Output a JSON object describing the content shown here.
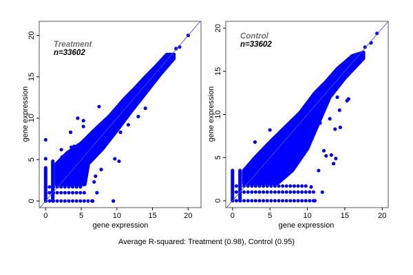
{
  "caption": "Average R-squared: Treatment (0.98), Control (0.95)",
  "colors": {
    "points": "#0000ff",
    "reference_line": "#4a4aff",
    "title": "#707070",
    "axes": "#555555"
  },
  "chart_data": [
    {
      "type": "scatter",
      "title": "Treatment",
      "subtitle": "n=33602",
      "xlabel": "gene expression",
      "ylabel": "gene expression",
      "xlim": [
        -0.9,
        21.8
      ],
      "ylim": [
        -0.8,
        21.7
      ],
      "xticks": [
        0,
        5,
        10,
        15,
        20
      ],
      "yticks": [
        0,
        5,
        10,
        15,
        20
      ],
      "reference_line": "y = x",
      "grid": false,
      "dense_region": [
        [
          1.5,
          4.5
        ],
        [
          3,
          5.8
        ],
        [
          5,
          7
        ],
        [
          7,
          8.7
        ],
        [
          9,
          10.3
        ],
        [
          11,
          12.3
        ],
        [
          12.5,
          13.6
        ],
        [
          14,
          15
        ],
        [
          15.5,
          16.3
        ],
        [
          17,
          17.7
        ],
        [
          18,
          17.7
        ],
        [
          18,
          17.2
        ],
        [
          16,
          15.2
        ],
        [
          14,
          13
        ],
        [
          12,
          10.8
        ],
        [
          10,
          8.5
        ],
        [
          8,
          6.3
        ],
        [
          6,
          4.5
        ],
        [
          5.5,
          2
        ],
        [
          1.5,
          2
        ]
      ],
      "horizontal_bands": [
        {
          "y": 0,
          "x_from": 0,
          "x_to": 6.5
        },
        {
          "y": 1,
          "x_from": 0,
          "x_to": 5.5
        },
        {
          "y": 1.7,
          "x_from": 0,
          "x_to": 5
        }
      ],
      "vertical_bands": [
        {
          "x": 0,
          "y_from": 0,
          "y_to": 4
        },
        {
          "x": 1,
          "y_from": 0,
          "y_to": 4.8
        }
      ],
      "points": [
        [
          0,
          7.4
        ],
        [
          0,
          5.1
        ],
        [
          7.5,
          11.4
        ],
        [
          4.5,
          10
        ],
        [
          5.3,
          9.7
        ],
        [
          5.3,
          9
        ],
        [
          3.5,
          8.3
        ],
        [
          2.2,
          6.2
        ],
        [
          3.6,
          6.5
        ],
        [
          4,
          6.6
        ],
        [
          9.5,
          0
        ],
        [
          10.3,
          4.8
        ],
        [
          9.7,
          5.1
        ],
        [
          7.8,
          3.8
        ],
        [
          7,
          3
        ],
        [
          6.8,
          2.3
        ],
        [
          20,
          20
        ],
        [
          18.8,
          18.6
        ],
        [
          18.3,
          18.4
        ],
        [
          12.6,
          12.5
        ],
        [
          14,
          11.2
        ],
        [
          13,
          10.2
        ],
        [
          11.6,
          9.2
        ],
        [
          10.5,
          8.3
        ],
        [
          7.2,
          1
        ],
        [
          6.6,
          0
        ],
        [
          2.3,
          5.3
        ]
      ]
    },
    {
      "type": "scatter",
      "title": "Control",
      "subtitle": "n=33602",
      "xlabel": "gene expression",
      "ylabel": "gene expression",
      "xlim": [
        -0.9,
        20.8
      ],
      "ylim": [
        -0.8,
        20.8
      ],
      "xticks": [
        0,
        5,
        10,
        15,
        20
      ],
      "yticks": [
        0,
        5,
        10,
        15,
        20
      ],
      "reference_line": "y = x",
      "grid": false,
      "dense_region": [
        [
          1.5,
          3.5
        ],
        [
          3,
          5
        ],
        [
          5,
          6.8
        ],
        [
          7,
          8.5
        ],
        [
          9,
          10.2
        ],
        [
          11,
          12.5
        ],
        [
          12.5,
          13.8
        ],
        [
          14,
          15.3
        ],
        [
          16,
          16.8
        ],
        [
          17.5,
          17.2
        ],
        [
          17.5,
          16.5
        ],
        [
          15,
          14.2
        ],
        [
          13,
          12
        ],
        [
          11,
          8
        ],
        [
          10,
          6
        ],
        [
          8,
          3.5
        ],
        [
          6,
          2
        ],
        [
          1.5,
          2
        ]
      ],
      "horizontal_bands": [
        {
          "y": 0,
          "x_from": 0,
          "x_to": 11
        },
        {
          "y": 1,
          "x_from": 0,
          "x_to": 11
        },
        {
          "y": 1.7,
          "x_from": 0,
          "x_to": 10
        }
      ],
      "vertical_bands": [
        {
          "x": 0,
          "y_from": 0,
          "y_to": 3.5
        },
        {
          "x": 1,
          "y_from": 0,
          "y_to": 3.5
        }
      ],
      "points": [
        [
          19.3,
          19.4
        ],
        [
          18.5,
          18.3
        ],
        [
          17.7,
          17.8
        ],
        [
          3,
          6.8
        ],
        [
          5,
          8.2
        ],
        [
          15.5,
          11.8
        ],
        [
          15.3,
          11.6
        ],
        [
          14,
          12
        ],
        [
          14.3,
          10.5
        ],
        [
          13.7,
          8.3
        ],
        [
          14.4,
          8.5
        ],
        [
          13.5,
          4.3
        ],
        [
          13.2,
          5.3
        ],
        [
          13.8,
          4.9
        ],
        [
          12.2,
          5.8
        ],
        [
          11.5,
          3.5
        ],
        [
          12,
          1
        ],
        [
          10.5,
          1.6
        ],
        [
          11.7,
          9
        ],
        [
          13,
          9.5
        ],
        [
          12.5,
          5.2
        ],
        [
          11,
          0
        ]
      ]
    }
  ]
}
